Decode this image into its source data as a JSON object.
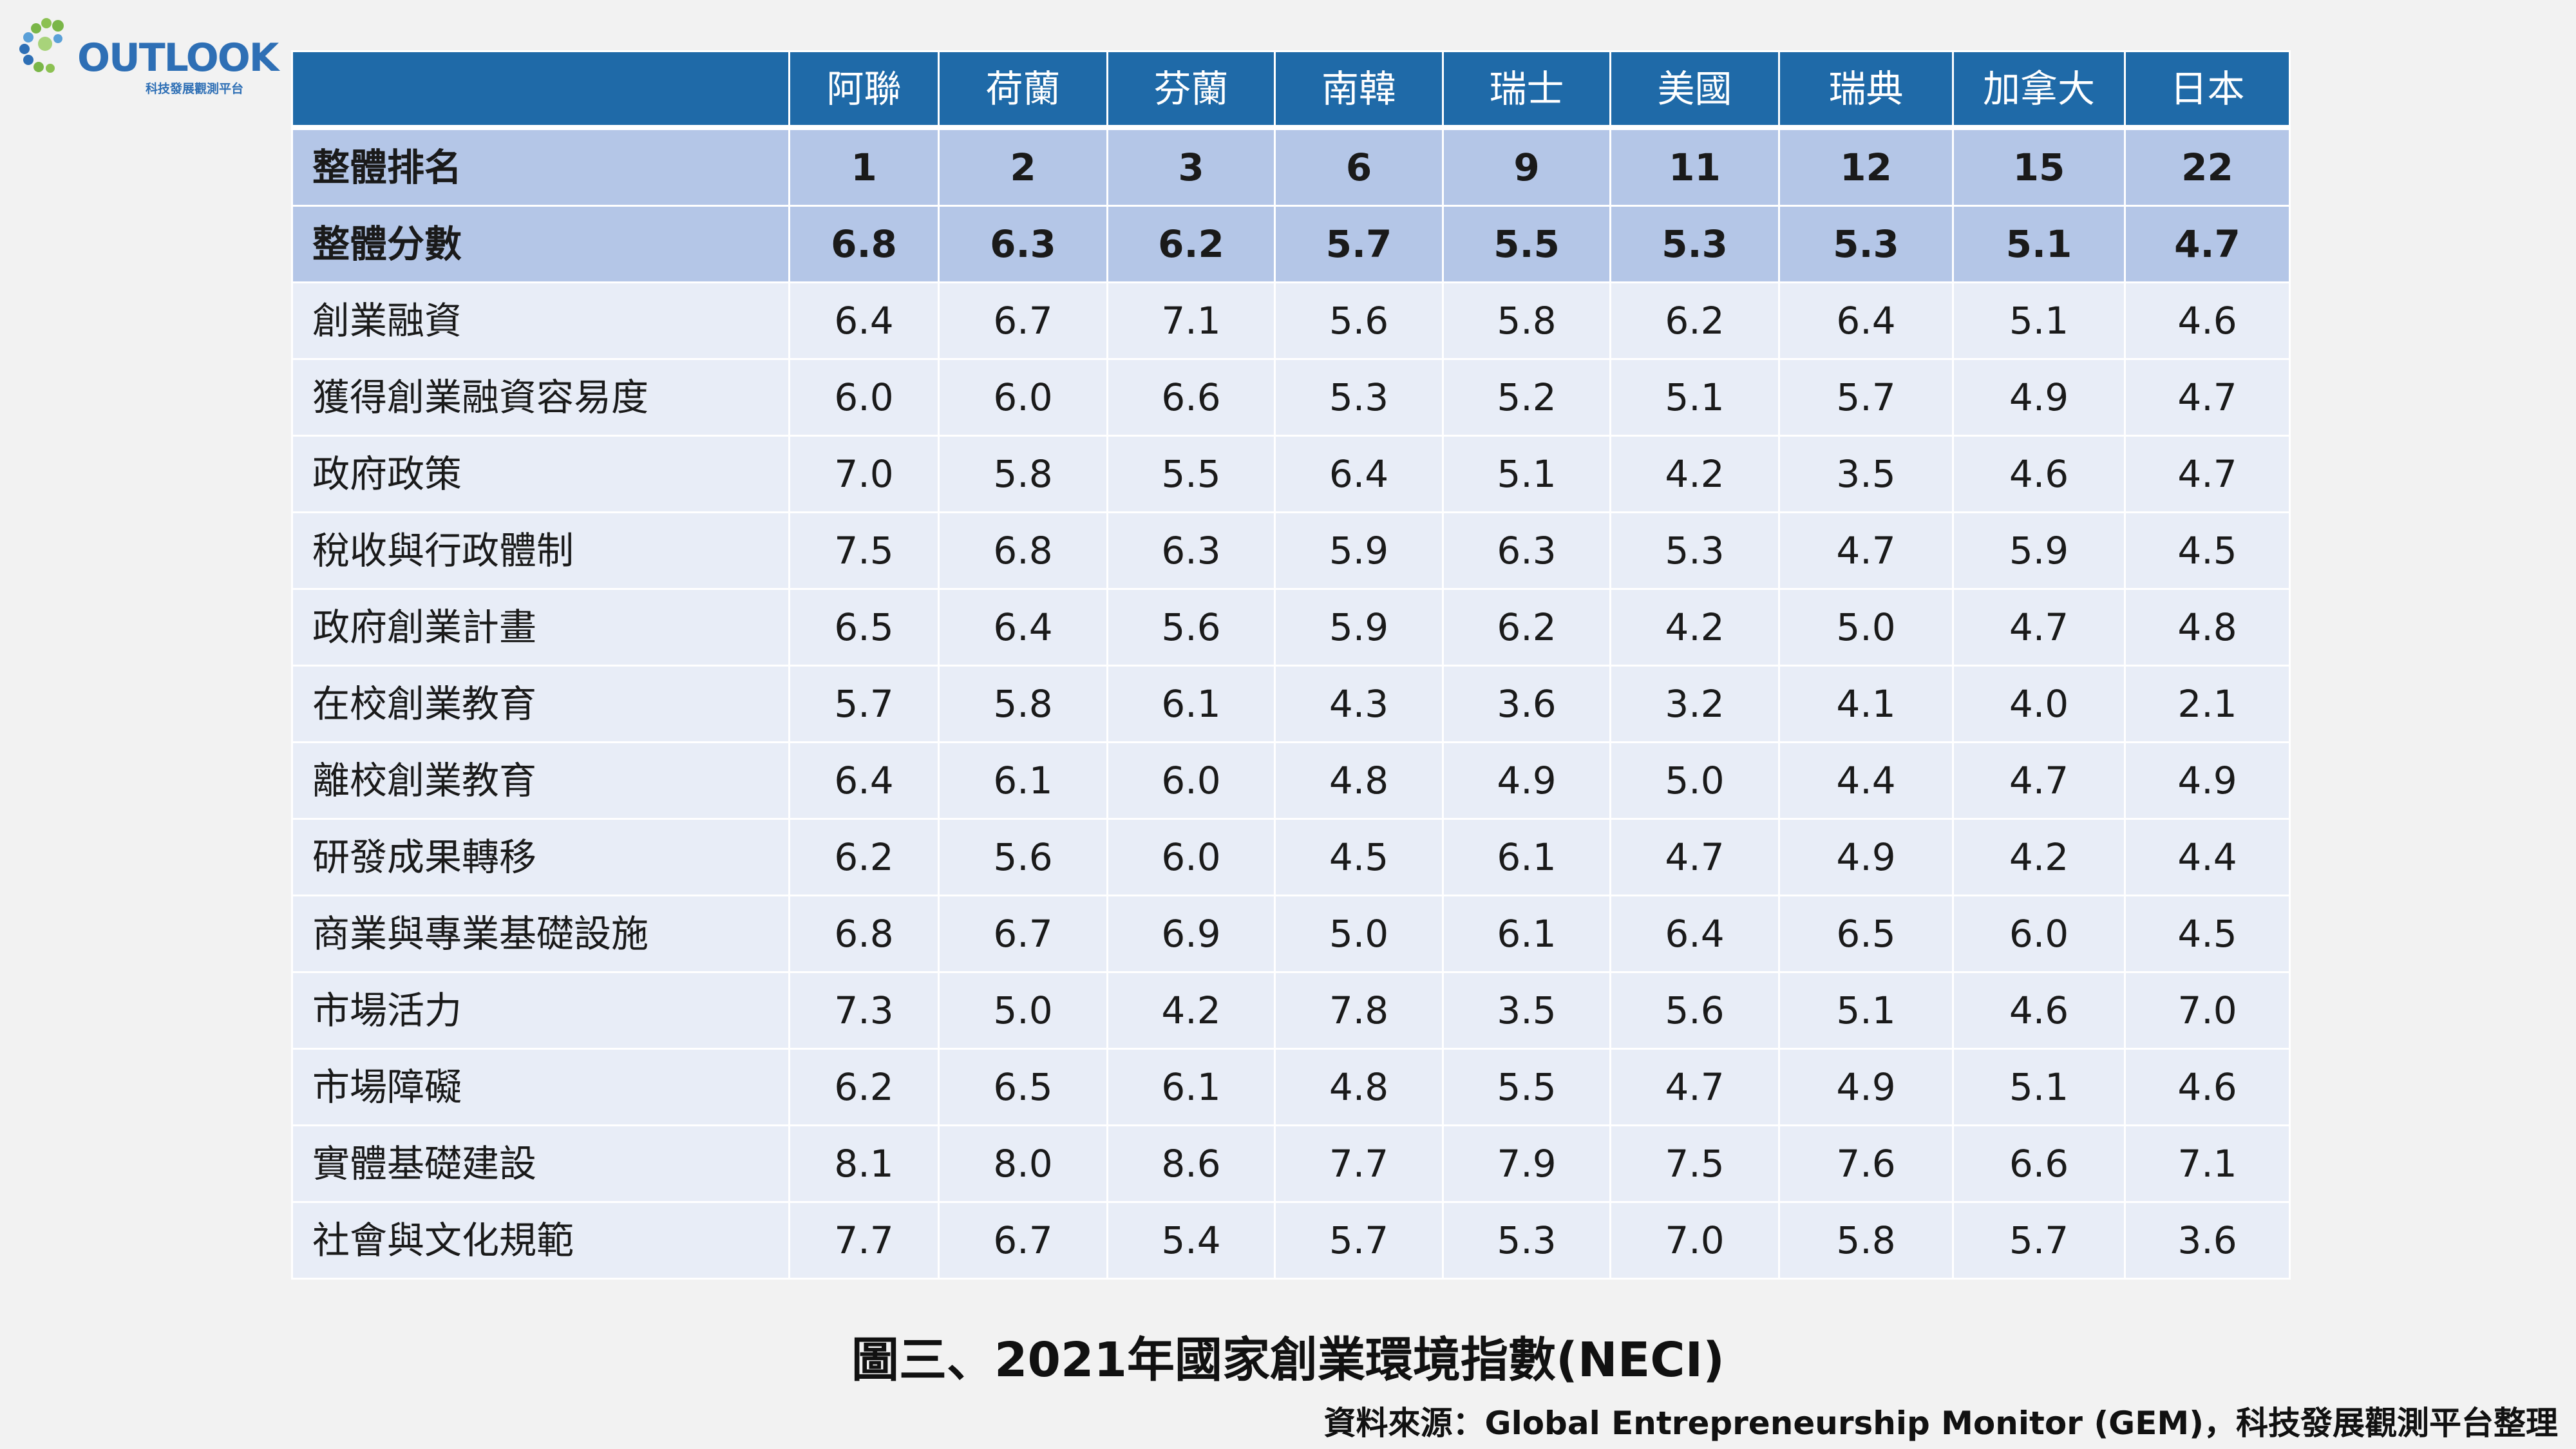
{
  "logo": {
    "name": "OUTLOOK",
    "subtitle": "科技發展觀測平台",
    "brand_color": "#2e6fb5",
    "accent_color": "#7ab648"
  },
  "colors": {
    "header_bg": "#1f6aa8",
    "summary_bg": "#b4c6e7",
    "row_bg": "#e8edf7"
  },
  "chart_data": {
    "type": "table",
    "title": "圖三、2021年國家創業環境指數(NECI)",
    "source": "資料來源：Global Entrepreneurship Monitor (GEM)，科技發展觀測平台整理",
    "columns": [
      "阿聯",
      "荷蘭",
      "芬蘭",
      "南韓",
      "瑞士",
      "美國",
      "瑞典",
      "加拿大",
      "日本"
    ],
    "summary_rows": [
      {
        "label": "整體排名",
        "values": [
          "1",
          "2",
          "3",
          "6",
          "9",
          "11",
          "12",
          "15",
          "22"
        ]
      },
      {
        "label": "整體分數",
        "values": [
          "6.8",
          "6.3",
          "6.2",
          "5.7",
          "5.5",
          "5.3",
          "5.3",
          "5.1",
          "4.7"
        ]
      }
    ],
    "rows": [
      {
        "label": "創業融資",
        "values": [
          "6.4",
          "6.7",
          "7.1",
          "5.6",
          "5.8",
          "6.2",
          "6.4",
          "5.1",
          "4.6"
        ]
      },
      {
        "label": "獲得創業融資容易度",
        "values": [
          "6.0",
          "6.0",
          "6.6",
          "5.3",
          "5.2",
          "5.1",
          "5.7",
          "4.9",
          "4.7"
        ]
      },
      {
        "label": "政府政策",
        "values": [
          "7.0",
          "5.8",
          "5.5",
          "6.4",
          "5.1",
          "4.2",
          "3.5",
          "4.6",
          "4.7"
        ]
      },
      {
        "label": "稅收與行政體制",
        "values": [
          "7.5",
          "6.8",
          "6.3",
          "5.9",
          "6.3",
          "5.3",
          "4.7",
          "5.9",
          "4.5"
        ]
      },
      {
        "label": "政府創業計畫",
        "values": [
          "6.5",
          "6.4",
          "5.6",
          "5.9",
          "6.2",
          "4.2",
          "5.0",
          "4.7",
          "4.8"
        ]
      },
      {
        "label": "在校創業教育",
        "values": [
          "5.7",
          "5.8",
          "6.1",
          "4.3",
          "3.6",
          "3.2",
          "4.1",
          "4.0",
          "2.1"
        ]
      },
      {
        "label": "離校創業教育",
        "values": [
          "6.4",
          "6.1",
          "6.0",
          "4.8",
          "4.9",
          "5.0",
          "4.4",
          "4.7",
          "4.9"
        ]
      },
      {
        "label": "研發成果轉移",
        "values": [
          "6.2",
          "5.6",
          "6.0",
          "4.5",
          "6.1",
          "4.7",
          "4.9",
          "4.2",
          "4.4"
        ]
      },
      {
        "label": "商業與專業基礎設施",
        "values": [
          "6.8",
          "6.7",
          "6.9",
          "5.0",
          "6.1",
          "6.4",
          "6.5",
          "6.0",
          "4.5"
        ]
      },
      {
        "label": "市場活力",
        "values": [
          "7.3",
          "5.0",
          "4.2",
          "7.8",
          "3.5",
          "5.6",
          "5.1",
          "4.6",
          "7.0"
        ]
      },
      {
        "label": "市場障礙",
        "values": [
          "6.2",
          "6.5",
          "6.1",
          "4.8",
          "5.5",
          "4.7",
          "4.9",
          "5.1",
          "4.6"
        ]
      },
      {
        "label": "實體基礎建設",
        "values": [
          "8.1",
          "8.0",
          "8.6",
          "7.7",
          "7.9",
          "7.5",
          "7.6",
          "6.6",
          "7.1"
        ]
      },
      {
        "label": "社會與文化規範",
        "values": [
          "7.7",
          "6.7",
          "5.4",
          "5.7",
          "5.3",
          "7.0",
          "5.8",
          "5.7",
          "3.6"
        ]
      }
    ]
  }
}
